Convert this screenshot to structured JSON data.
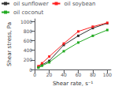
{
  "chart_data": {
    "type": "line",
    "xlabel": "Shear rate, s⁻¹",
    "ylabel": "Shear stress, Pa",
    "x": [
      5,
      10,
      20,
      40,
      60,
      80,
      100
    ],
    "series": [
      {
        "name": "oil sunflower",
        "color": "#333333",
        "values": [
          50,
          100,
          180,
          510,
          700,
          860,
          960
        ]
      },
      {
        "name": "oil soybean",
        "color": "#ff2222",
        "values": [
          70,
          130,
          270,
          540,
          790,
          890,
          970
        ]
      },
      {
        "name": "oil coconut",
        "color": "#22aa22",
        "values": [
          40,
          80,
          150,
          380,
          560,
          700,
          820
        ]
      }
    ],
    "xlim": [
      0,
      105
    ],
    "ylim": [
      0,
      1050
    ],
    "xticks": [
      0,
      20,
      40,
      60,
      80,
      100
    ],
    "yticks": [
      0,
      200,
      400,
      600,
      800,
      1000
    ],
    "grid": false,
    "legend": "upper left",
    "marker": "square"
  }
}
